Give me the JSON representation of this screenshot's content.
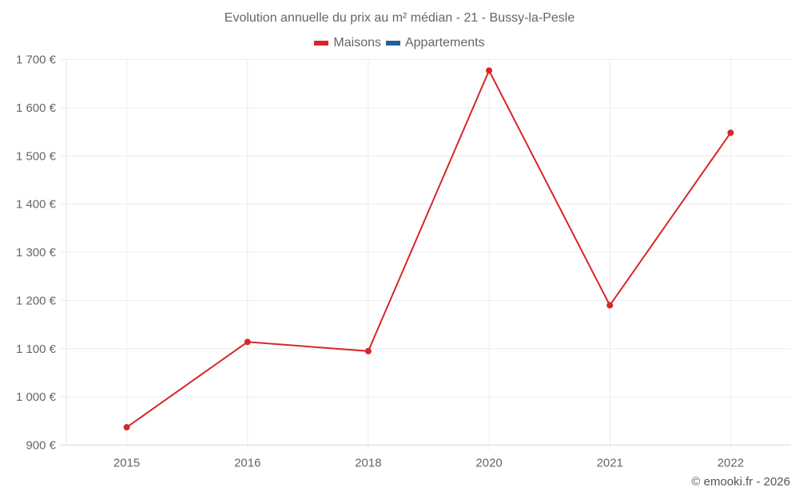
{
  "header": {
    "title": "Evolution annuelle du prix au m² médian - 21 - Bussy-la-Pesle"
  },
  "legend": [
    {
      "label": "Maisons",
      "color": "#d62728"
    },
    {
      "label": "Appartements",
      "color": "#1f5f9a"
    }
  ],
  "footer": {
    "credit": "© emooki.fr - 2026"
  },
  "chart_data": {
    "type": "line",
    "title": "Evolution annuelle du prix au m² médian - 21 - Bussy-la-Pesle",
    "xlabel": "",
    "ylabel": "",
    "categories": [
      "2015",
      "2016",
      "2018",
      "2020",
      "2021",
      "2022"
    ],
    "series": [
      {
        "name": "Maisons",
        "color": "#d62728",
        "values": [
          937,
          1114,
          1095,
          1677,
          1190,
          1548
        ]
      },
      {
        "name": "Appartements",
        "color": "#1f5f9a",
        "values": []
      }
    ],
    "ylim": [
      900,
      1700
    ],
    "yticks": [
      900,
      1000,
      1100,
      1200,
      1300,
      1400,
      1500,
      1600,
      1700
    ],
    "ytick_labels": [
      "900 €",
      "1 000 €",
      "1 100 €",
      "1 200 €",
      "1 300 €",
      "1 400 €",
      "1 500 €",
      "1 600 €",
      "1 700 €"
    ],
    "grid": true,
    "legend_position": "top"
  }
}
